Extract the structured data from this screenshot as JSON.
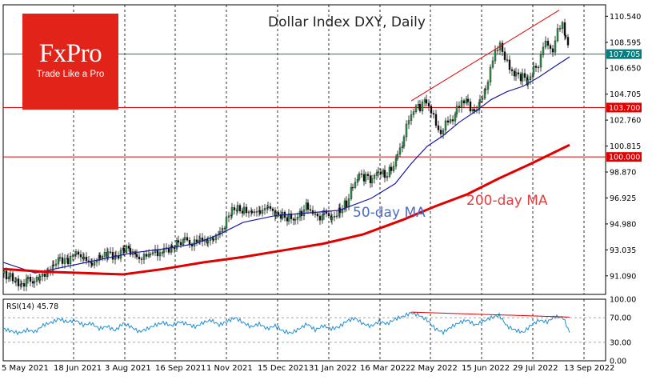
{
  "chart_data": [
    {
      "type": "candlestick",
      "title": "Dollar Index DXY, Daily",
      "y_ticks": [
        110.54,
        108.59,
        106.65,
        104.705,
        102.76,
        100.815,
        98.87,
        96.925,
        94.98,
        93.035,
        91.09
      ],
      "y_tick_labels": [
        "110.540",
        "108.595",
        "106.650",
        "104.705",
        "102.760",
        "100.815",
        "98.870",
        "96.925",
        "94.980",
        "93.035",
        "91.090"
      ],
      "ylim": [
        89.7,
        111.4
      ],
      "x_tick_labels": [
        "5 May 2021",
        "18 Jun 2021",
        "3 Aug 2021",
        "16 Sep 2021",
        "1 Nov 2021",
        "15 Dec 2021",
        "31 Jan 2022",
        "16 Mar 2022",
        "2 May 2022",
        "15 Jun 2022",
        "29 Jul 2022",
        "13 Sep 2022"
      ],
      "price_path": [
        [
          0,
          91.3
        ],
        [
          8,
          91.0
        ],
        [
          15,
          90.7
        ],
        [
          22,
          90.5
        ],
        [
          30,
          90.9
        ],
        [
          38,
          90.6
        ],
        [
          45,
          91.0
        ],
        [
          55,
          91.5
        ],
        [
          62,
          92.0
        ],
        [
          70,
          92.4
        ],
        [
          80,
          92.3
        ],
        [
          90,
          92.6
        ],
        [
          100,
          92.5
        ],
        [
          110,
          92.1
        ],
        [
          120,
          92.3
        ],
        [
          130,
          92.8
        ],
        [
          140,
          92.6
        ],
        [
          150,
          93.1
        ],
        [
          158,
          93.0
        ],
        [
          166,
          92.6
        ],
        [
          175,
          92.4
        ],
        [
          183,
          92.7
        ],
        [
          192,
          92.8
        ],
        [
          200,
          93.1
        ],
        [
          210,
          93.3
        ],
        [
          218,
          93.6
        ],
        [
          226,
          93.9
        ],
        [
          235,
          93.5
        ],
        [
          245,
          93.6
        ],
        [
          255,
          93.9
        ],
        [
          262,
          94.1
        ],
        [
          270,
          94.4
        ],
        [
          278,
          95.2
        ],
        [
          285,
          96.0
        ],
        [
          292,
          96.3
        ],
        [
          300,
          95.9
        ],
        [
          310,
          96.1
        ],
        [
          320,
          95.8
        ],
        [
          330,
          96.1
        ],
        [
          340,
          95.9
        ],
        [
          348,
          95.6
        ],
        [
          356,
          95.4
        ],
        [
          364,
          95.2
        ],
        [
          372,
          95.8
        ],
        [
          380,
          96.4
        ],
        [
          386,
          95.7
        ],
        [
          392,
          95.4
        ],
        [
          400,
          95.8
        ],
        [
          410,
          95.6
        ],
        [
          420,
          95.9
        ],
        [
          428,
          96.5
        ],
        [
          436,
          97.9
        ],
        [
          444,
          98.7
        ],
        [
          452,
          98.5
        ],
        [
          460,
          98.2
        ],
        [
          468,
          98.9
        ],
        [
          476,
          98.6
        ],
        [
          484,
          99.1
        ],
        [
          492,
          100.2
        ],
        [
          500,
          101.4
        ],
        [
          506,
          103.0
        ],
        [
          512,
          103.5
        ],
        [
          520,
          103.8
        ],
        [
          528,
          104.3
        ],
        [
          534,
          103.4
        ],
        [
          540,
          102.3
        ],
        [
          546,
          101.9
        ],
        [
          552,
          102.4
        ],
        [
          558,
          102.7
        ],
        [
          566,
          103.5
        ],
        [
          572,
          104.3
        ],
        [
          580,
          104.1
        ],
        [
          588,
          103.3
        ],
        [
          595,
          104.3
        ],
        [
          602,
          105.2
        ],
        [
          608,
          106.6
        ],
        [
          614,
          107.7
        ],
        [
          620,
          108.7
        ],
        [
          626,
          107.2
        ],
        [
          632,
          106.7
        ],
        [
          640,
          106.2
        ],
        [
          648,
          106.0
        ],
        [
          655,
          105.5
        ],
        [
          662,
          106.6
        ],
        [
          668,
          107.0
        ],
        [
          674,
          108.2
        ],
        [
          680,
          108.5
        ],
        [
          686,
          108.0
        ],
        [
          692,
          109.3
        ],
        [
          698,
          110.1
        ],
        [
          702,
          109.2
        ],
        [
          708,
          107.7
        ]
      ],
      "series": [
        {
          "name": "50-day MA",
          "color": "#1a1aa0",
          "points": [
            [
              0,
              92.1
            ],
            [
              40,
              91.3
            ],
            [
              80,
              91.8
            ],
            [
              120,
              92.3
            ],
            [
              160,
              92.8
            ],
            [
              200,
              93.1
            ],
            [
              240,
              93.5
            ],
            [
              270,
              94.2
            ],
            [
              300,
              95.1
            ],
            [
              340,
              95.6
            ],
            [
              380,
              95.8
            ],
            [
              420,
              96.0
            ],
            [
              460,
              96.9
            ],
            [
              490,
              98.0
            ],
            [
              510,
              99.5
            ],
            [
              530,
              100.8
            ],
            [
              550,
              101.6
            ],
            [
              570,
              102.6
            ],
            [
              590,
              103.4
            ],
            [
              610,
              104.3
            ],
            [
              630,
              104.9
            ],
            [
              650,
              105.3
            ],
            [
              670,
              106.0
            ],
            [
              690,
              106.8
            ],
            [
              708,
              107.5
            ]
          ]
        },
        {
          "name": "200-day MA",
          "color": "#e00000",
          "points": [
            [
              0,
              91.6
            ],
            [
              50,
              91.4
            ],
            [
              100,
              91.3
            ],
            [
              150,
              91.2
            ],
            [
              200,
              91.6
            ],
            [
              250,
              92.1
            ],
            [
              300,
              92.5
            ],
            [
              350,
              93.0
            ],
            [
              400,
              93.5
            ],
            [
              450,
              94.2
            ],
            [
              500,
              95.3
            ],
            [
              540,
              96.3
            ],
            [
              580,
              97.2
            ],
            [
              620,
              98.4
            ],
            [
              660,
              99.5
            ],
            [
              708,
              100.9
            ]
          ]
        }
      ],
      "hlines": [
        {
          "label": "107.705",
          "value": 107.705,
          "color": "#008080"
        },
        {
          "label": "103.700",
          "value": 103.7,
          "color": "#e00000"
        },
        {
          "label": "100.000",
          "value": 100.0,
          "color": "#e00000"
        }
      ],
      "trendline": [
        [
          510,
          104.2
        ],
        [
          695,
          111.0
        ]
      ],
      "annotations": [
        {
          "text": "50-day MA",
          "color": "#4a6cc8"
        },
        {
          "text": "200-day MA",
          "color": "#e04040"
        }
      ]
    },
    {
      "type": "line",
      "title": "RSI(14) 45.78",
      "y_ticks": [
        100,
        70,
        30,
        0
      ],
      "y_tick_labels": [
        "100.00",
        "70.00",
        "30.00",
        "0.00"
      ],
      "ylim": [
        0,
        100
      ],
      "values": [
        [
          0,
          52
        ],
        [
          10,
          48
        ],
        [
          20,
          45
        ],
        [
          30,
          50
        ],
        [
          40,
          47
        ],
        [
          50,
          58
        ],
        [
          60,
          62
        ],
        [
          70,
          68
        ],
        [
          80,
          63
        ],
        [
          90,
          66
        ],
        [
          100,
          58
        ],
        [
          110,
          61
        ],
        [
          120,
          52
        ],
        [
          130,
          56
        ],
        [
          140,
          49
        ],
        [
          150,
          61
        ],
        [
          160,
          55
        ],
        [
          170,
          47
        ],
        [
          180,
          52
        ],
        [
          190,
          58
        ],
        [
          200,
          62
        ],
        [
          210,
          57
        ],
        [
          220,
          63
        ],
        [
          230,
          60
        ],
        [
          240,
          55
        ],
        [
          250,
          62
        ],
        [
          260,
          66
        ],
        [
          270,
          58
        ],
        [
          280,
          64
        ],
        [
          290,
          70
        ],
        [
          300,
          62
        ],
        [
          310,
          55
        ],
        [
          320,
          60
        ],
        [
          330,
          52
        ],
        [
          340,
          57
        ],
        [
          350,
          48
        ],
        [
          360,
          45
        ],
        [
          370,
          52
        ],
        [
          380,
          60
        ],
        [
          390,
          50
        ],
        [
          400,
          57
        ],
        [
          410,
          52
        ],
        [
          420,
          55
        ],
        [
          430,
          65
        ],
        [
          440,
          69
        ],
        [
          450,
          60
        ],
        [
          460,
          56
        ],
        [
          470,
          64
        ],
        [
          480,
          60
        ],
        [
          490,
          68
        ],
        [
          500,
          72
        ],
        [
          510,
          78
        ],
        [
          520,
          74
        ],
        [
          530,
          66
        ],
        [
          540,
          52
        ],
        [
          550,
          46
        ],
        [
          560,
          55
        ],
        [
          570,
          62
        ],
        [
          580,
          66
        ],
        [
          590,
          58
        ],
        [
          600,
          64
        ],
        [
          610,
          70
        ],
        [
          620,
          74
        ],
        [
          630,
          56
        ],
        [
          640,
          50
        ],
        [
          650,
          46
        ],
        [
          660,
          58
        ],
        [
          670,
          66
        ],
        [
          680,
          63
        ],
        [
          690,
          72
        ],
        [
          700,
          70
        ],
        [
          708,
          45.78
        ]
      ],
      "trendline": [
        [
          510,
          79
        ],
        [
          708,
          71
        ]
      ]
    }
  ],
  "logo": {
    "name": "FxPro",
    "tagline": "Trade Like a Pro"
  }
}
